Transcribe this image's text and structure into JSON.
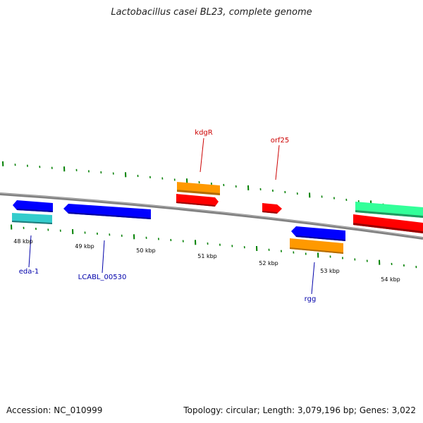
{
  "title": "Lactobacillus casei BL23, complete genome",
  "footer": {
    "accession": "Accession: NC_010999",
    "topology": "Topology: circular; Length: 3,079,196 bp; Genes: 3,022"
  },
  "colors": {
    "backbone": "#808080",
    "ticks": "#008000",
    "forward_cds": "#ff0000",
    "forward_gene": "#ff9900",
    "reverse_cds": "#0000ff",
    "reverse_gene": "#33cccc",
    "rrna_like": "#33ff99",
    "forward_label": "#cc0000",
    "reverse_label": "#0000aa"
  },
  "scale_labels": [
    "48 kbp",
    "49 kbp",
    "50 kbp",
    "51 kbp",
    "52 kbp",
    "53 kbp",
    "54 kbp"
  ],
  "gene_labels": [
    {
      "name": "kdgR",
      "strand": "forward"
    },
    {
      "name": "orf25",
      "strand": "forward"
    },
    {
      "name": "eda-1",
      "strand": "reverse"
    },
    {
      "name": "LCABL_00530",
      "strand": "reverse"
    },
    {
      "name": "rgg",
      "strand": "reverse"
    }
  ]
}
